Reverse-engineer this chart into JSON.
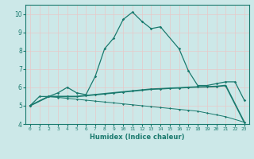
{
  "xlabel": "Humidex (Indice chaleur)",
  "x": [
    0,
    1,
    2,
    3,
    4,
    5,
    6,
    7,
    8,
    9,
    10,
    11,
    12,
    13,
    14,
    15,
    16,
    17,
    18,
    19,
    20,
    21,
    22,
    23
  ],
  "line1_x": [
    0,
    1,
    2,
    3,
    4,
    5,
    6,
    7,
    8,
    9,
    10,
    11,
    12,
    13,
    14,
    16,
    17,
    18,
    19,
    20,
    21,
    22,
    23
  ],
  "line1_y": [
    5.0,
    5.5,
    5.5,
    5.7,
    6.0,
    5.7,
    5.6,
    6.6,
    8.1,
    8.7,
    9.7,
    10.1,
    9.6,
    9.2,
    9.3,
    8.1,
    6.9,
    6.1,
    6.1,
    6.2,
    6.3,
    6.3,
    5.3
  ],
  "line2_x": [
    0,
    2,
    3,
    4,
    5,
    6,
    7,
    8,
    9,
    10,
    11,
    12,
    13,
    14,
    15,
    16,
    17,
    18,
    19,
    20,
    21,
    23
  ],
  "line2_y": [
    5.0,
    5.5,
    5.5,
    5.5,
    5.5,
    5.55,
    5.6,
    5.65,
    5.7,
    5.75,
    5.8,
    5.85,
    5.9,
    5.92,
    5.95,
    5.97,
    6.0,
    6.02,
    6.03,
    6.05,
    6.1,
    4.1
  ],
  "line3_x": [
    0,
    2,
    3,
    4,
    5,
    6,
    7,
    8,
    9,
    10,
    11,
    12,
    13,
    14,
    15,
    16,
    17,
    18,
    19,
    20,
    21,
    23
  ],
  "line3_y": [
    5.0,
    5.5,
    5.45,
    5.4,
    5.35,
    5.3,
    5.25,
    5.2,
    5.15,
    5.1,
    5.05,
    5.0,
    4.95,
    4.9,
    4.85,
    4.8,
    4.75,
    4.7,
    4.6,
    4.5,
    4.4,
    4.1
  ],
  "color": "#1a7a6e",
  "bg_color": "#cce8e8",
  "grid_color": "#e8d0d0",
  "ylim": [
    4,
    10.5
  ],
  "xlim": [
    -0.5,
    23.5
  ],
  "xticks": [
    0,
    1,
    2,
    3,
    4,
    5,
    6,
    7,
    8,
    9,
    10,
    11,
    12,
    13,
    14,
    15,
    16,
    17,
    18,
    19,
    20,
    21,
    22,
    23
  ],
  "yticks": [
    4,
    5,
    6,
    7,
    8,
    9,
    10
  ]
}
